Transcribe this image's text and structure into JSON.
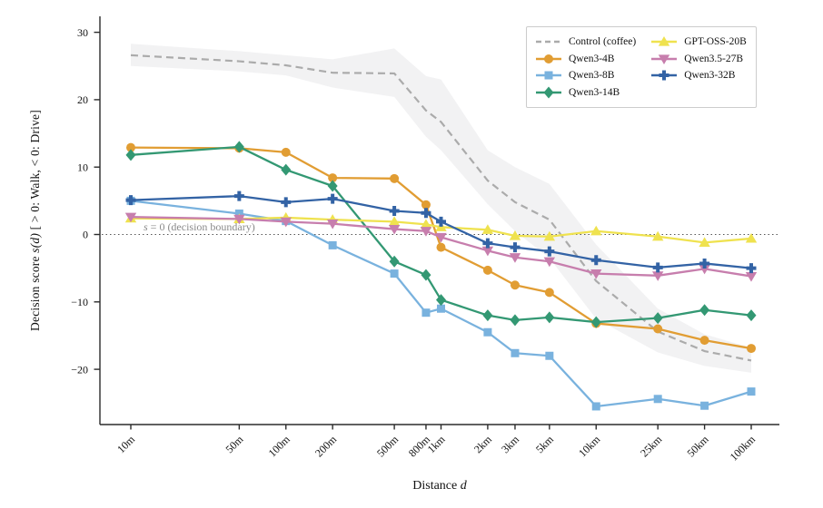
{
  "figure": {
    "xlabel_prefix": "Distance ",
    "xlabel_var": "d",
    "ylabel_prefix": "Decision score ",
    "ylabel_var": "s(d)",
    "ylabel_suffix": " [ > 0: Walk,  < 0: Drive]",
    "annotation_var": "s",
    "annotation_rest": " = 0 (decision boundary)"
  },
  "chart_data": {
    "type": "line",
    "x_scale": "log",
    "xlabel": "Distance d",
    "ylabel": "Decision score s(d) [ > 0: Walk, < 0: Drive]",
    "categories": [
      "10m",
      "50m",
      "100m",
      "200m",
      "500m",
      "800m",
      "1km",
      "2km",
      "3km",
      "5km",
      "10km",
      "25km",
      "50km",
      "100km"
    ],
    "distances_m": [
      10,
      50,
      100,
      200,
      500,
      800,
      1000,
      2000,
      3000,
      5000,
      10000,
      25000,
      50000,
      100000
    ],
    "yticks": [
      30,
      20,
      10,
      0,
      -10,
      -20
    ],
    "ylim": [
      -28,
      31
    ],
    "grid": false,
    "legend_position": "upper right",
    "zero_line": 0,
    "zero_line_color": "#555555",
    "axis_color": "#2b2b2b",
    "annotation_color": "#8a8a8a",
    "control": {
      "name": "Control (coffee)",
      "color": "#ababab",
      "style": "dashed",
      "values": [
        26.6,
        25.7,
        25.1,
        24.0,
        23.9,
        18.4,
        16.7,
        8.0,
        4.8,
        2.2,
        -6.9,
        -14.4,
        -17.3,
        -18.7
      ],
      "band_hi": [
        28.3,
        27.2,
        26.6,
        26.0,
        27.6,
        23.5,
        23.0,
        12.5,
        10.0,
        7.5,
        -1.5,
        -11.0,
        -14.8,
        -16.8
      ],
      "band_lo": [
        25.0,
        24.2,
        23.6,
        21.8,
        20.4,
        14.5,
        12.5,
        4.5,
        0.5,
        -3.5,
        -12.5,
        -17.5,
        -19.5,
        -20.5
      ],
      "band_color": "#e7e7ea"
    },
    "series": [
      {
        "name": "Qwen3-4B",
        "color": "#e19d33",
        "marker": "circle",
        "values": [
          12.9,
          12.8,
          12.2,
          8.4,
          8.3,
          4.4,
          -1.9,
          -5.3,
          -7.5,
          -8.6,
          -13.2,
          -14.0,
          -15.7,
          -16.9
        ]
      },
      {
        "name": "Qwen3-8B",
        "color": "#79b2de",
        "marker": "square",
        "values": [
          5.0,
          3.1,
          2.0,
          -1.6,
          -5.8,
          -11.6,
          -11.0,
          -14.5,
          -17.6,
          -18.0,
          -25.5,
          -24.4,
          -25.4,
          -23.3
        ]
      },
      {
        "name": "Qwen3-14B",
        "color": "#339873",
        "marker": "diamond",
        "values": [
          11.8,
          13.0,
          9.6,
          7.2,
          -4.0,
          -6.0,
          -9.7,
          -12.0,
          -12.7,
          -12.3,
          -13.0,
          -12.4,
          -11.2,
          -12.0
        ]
      },
      {
        "name": "GPT-OSS-20B",
        "color": "#efe24f",
        "marker": "triangle-up",
        "values": [
          2.4,
          2.3,
          2.5,
          2.2,
          1.9,
          1.5,
          1.1,
          0.7,
          -0.2,
          -0.3,
          0.5,
          -0.3,
          -1.2,
          -0.6
        ]
      },
      {
        "name": "Qwen3.5-27B",
        "color": "#c77ead",
        "marker": "triangle-down",
        "values": [
          2.6,
          2.3,
          1.9,
          1.6,
          0.8,
          0.5,
          -0.4,
          -2.4,
          -3.4,
          -4.0,
          -5.8,
          -6.1,
          -5.1,
          -6.2
        ]
      },
      {
        "name": "Qwen3-32B",
        "color": "#3363a5",
        "marker": "plus",
        "values": [
          5.1,
          5.7,
          4.8,
          5.3,
          3.5,
          3.2,
          1.9,
          -1.3,
          -1.9,
          -2.5,
          -3.8,
          -4.9,
          -4.3,
          -5.0
        ]
      }
    ]
  }
}
